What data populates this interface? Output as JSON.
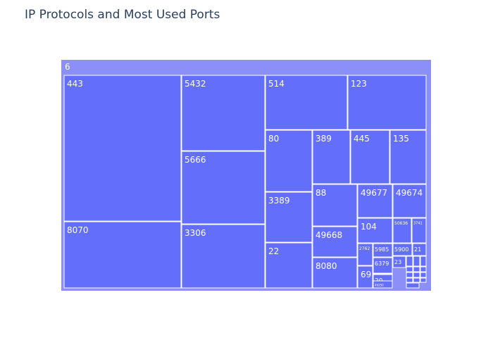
{
  "chart_data": {
    "type": "treemap",
    "title": "IP Protocols and Most Used Ports",
    "root": "6",
    "colors": {
      "root": "#8c8ff8",
      "leaf": "#636efa"
    },
    "leaves": [
      {
        "label": "443"
      },
      {
        "label": "8070"
      },
      {
        "label": "5432"
      },
      {
        "label": "5666"
      },
      {
        "label": "3306"
      },
      {
        "label": "514"
      },
      {
        "label": "123"
      },
      {
        "label": "80"
      },
      {
        "label": "389"
      },
      {
        "label": "445"
      },
      {
        "label": "135"
      },
      {
        "label": "3389"
      },
      {
        "label": "22"
      },
      {
        "label": "88"
      },
      {
        "label": "49668"
      },
      {
        "label": "8080"
      },
      {
        "label": "49677"
      },
      {
        "label": "49674"
      },
      {
        "label": "104"
      },
      {
        "label": "50636"
      },
      {
        "label": "3741"
      },
      {
        "label": "2762"
      },
      {
        "label": "5985"
      },
      {
        "label": "5900"
      },
      {
        "label": "21"
      },
      {
        "label": "69"
      },
      {
        "label": "6379"
      },
      {
        "label": "23"
      },
      {
        "label": "8443"
      },
      {
        "label": "20"
      },
      {
        "label": "49250"
      },
      {
        "label": ""
      },
      {
        "label": ""
      },
      {
        "label": ""
      },
      {
        "label": ""
      },
      {
        "label": ""
      },
      {
        "label": ""
      },
      {
        "label": ""
      },
      {
        "label": ""
      },
      {
        "label": ""
      },
      {
        "label": ""
      },
      {
        "label": ""
      },
      {
        "label": ""
      },
      {
        "label": ""
      }
    ]
  }
}
